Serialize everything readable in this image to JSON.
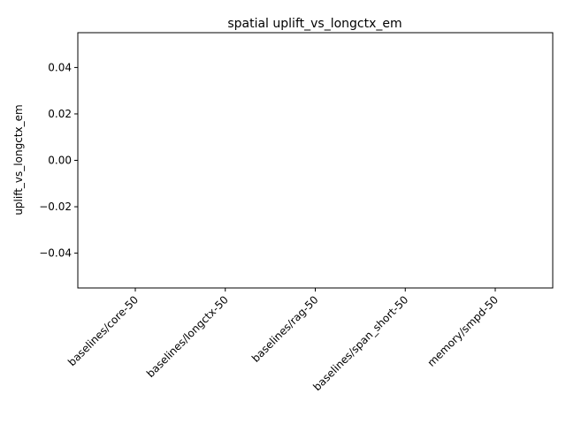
{
  "chart_data": {
    "type": "bar",
    "title": "spatial uplift_vs_longctx_em",
    "xlabel": "",
    "ylabel": "uplift_vs_longctx_em",
    "categories": [
      "baselines/core-50",
      "baselines/longctx-50",
      "baselines/rag-50",
      "baselines/span_short-50",
      "memory/smpd-50"
    ],
    "values": [
      0,
      0,
      0,
      0,
      0
    ],
    "ylim": [
      -0.055,
      0.055
    ],
    "yticks": [
      0.04,
      0.02,
      0.0,
      -0.02,
      -0.04
    ],
    "ytick_labels": [
      "0.04",
      "0.02",
      "0.00",
      "−0.02",
      "−0.04"
    ],
    "grid": false,
    "legend": "none"
  }
}
